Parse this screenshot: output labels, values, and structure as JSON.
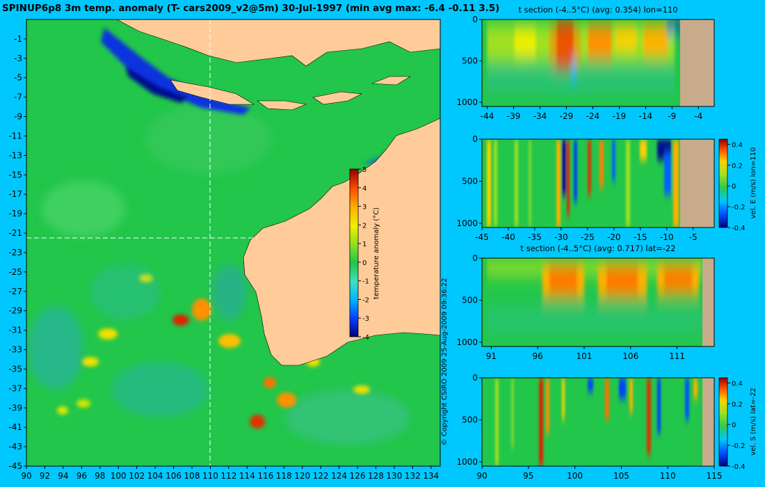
{
  "title": "SPINUP6p8 3m temp. anomaly (T- cars2009_v2@5m) 30-Jul-1997 (min avg max: -6.4 -0.11 3.5)",
  "copyright": "© Copyright CSIRO 2009   25-Aug-2009 09:36:22",
  "colors": {
    "background": "#00c8ff",
    "land": "#ffcc99",
    "section_land": "#c8ab8a"
  },
  "chart_data": [
    {
      "type": "heatmap",
      "name": "map",
      "x_ticks": [
        90,
        92,
        94,
        96,
        98,
        100,
        102,
        104,
        106,
        108,
        110,
        112,
        114,
        116,
        118,
        120,
        122,
        124,
        126,
        128,
        130,
        132,
        134
      ],
      "y_ticks": [
        -1,
        -3,
        -5,
        -7,
        -9,
        -11,
        -13,
        -15,
        -17,
        -19,
        -21,
        -23,
        -25,
        -27,
        -29,
        -31,
        -33,
        -35,
        -37,
        -39,
        -41,
        -43,
        -45
      ],
      "xlim": [
        90,
        135
      ],
      "ylim": [
        -45,
        1
      ],
      "section_lon": 110,
      "section_lat": -22,
      "colorbar": {
        "label": "temperature anomaly (°C)",
        "ticks": [
          5,
          4,
          3,
          2,
          1,
          0,
          -1,
          -2,
          -3,
          -4
        ],
        "range": [
          -4,
          5
        ]
      }
    },
    {
      "type": "heatmap",
      "name": "section-1",
      "title": "t section (-4..5°C) (avg: 0.354) lon=110",
      "x_ticks": [
        -44,
        -39,
        -34,
        -29,
        -24,
        -19,
        -14,
        -9,
        -4
      ],
      "y_ticks": [
        0,
        500,
        1000
      ],
      "xlim": [
        -45,
        -1
      ],
      "ylim": [
        1050,
        0
      ]
    },
    {
      "type": "heatmap",
      "name": "section-2",
      "title": "",
      "x_ticks": [
        -45,
        -40,
        -35,
        -30,
        -25,
        -20,
        -15,
        -10,
        -5
      ],
      "y_ticks": [
        0,
        500,
        1000
      ],
      "xlim": [
        -45,
        -1
      ],
      "ylim": [
        1050,
        0
      ],
      "colorbar": {
        "label": "vel. E (m/s) lon=110",
        "ticks": [
          0.4,
          0.2,
          0,
          -0.2,
          -0.4
        ],
        "range": [
          -0.4,
          0.45
        ]
      }
    },
    {
      "type": "heatmap",
      "name": "section-3",
      "title": "t section (-4..5°C) (avg: 0.717) lat=-22",
      "x_ticks": [
        91,
        96,
        101,
        106,
        111
      ],
      "y_ticks": [
        0,
        500,
        1000
      ],
      "xlim": [
        90,
        115
      ],
      "ylim": [
        1050,
        0
      ]
    },
    {
      "type": "heatmap",
      "name": "section-4",
      "title": "",
      "x_ticks": [
        90,
        95,
        100,
        105,
        110,
        115
      ],
      "y_ticks": [
        0,
        500,
        1000
      ],
      "xlim": [
        90,
        115
      ],
      "ylim": [
        1050,
        0
      ],
      "colorbar": {
        "label": "vel. S (m/s) lat=-22",
        "ticks": [
          0.4,
          0.2,
          0,
          -0.2,
          -0.4
        ],
        "range": [
          -0.4,
          0.45
        ]
      }
    }
  ]
}
